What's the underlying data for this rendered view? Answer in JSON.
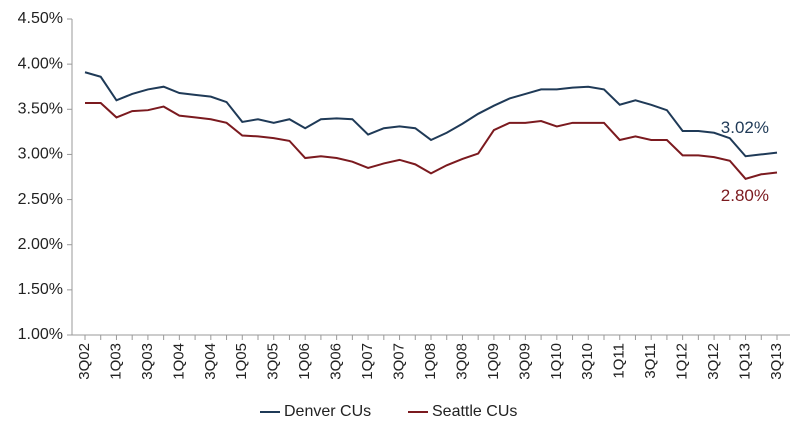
{
  "chart_data": {
    "type": "line",
    "categories": [
      "3Q02",
      null,
      "1Q03",
      null,
      "3Q03",
      null,
      "1Q04",
      null,
      "3Q04",
      null,
      "1Q05",
      null,
      "3Q05",
      null,
      "1Q06",
      null,
      "3Q06",
      null,
      "1Q07",
      null,
      "3Q07",
      null,
      "1Q08",
      null,
      "3Q08",
      null,
      "1Q09",
      null,
      "3Q09",
      null,
      "1Q10",
      null,
      "3Q10",
      null,
      "1Q11",
      null,
      "3Q11",
      null,
      "1Q12",
      null,
      "3Q12",
      null,
      "1Q13",
      null,
      "3Q13"
    ],
    "series": [
      {
        "name": "Denver CUs",
        "color": "#1f3a57",
        "end_label": "3.02%",
        "values": [
          3.91,
          3.86,
          3.6,
          3.67,
          3.72,
          3.75,
          3.68,
          3.66,
          3.64,
          3.58,
          3.36,
          3.39,
          3.35,
          3.39,
          3.29,
          3.39,
          3.4,
          3.39,
          3.22,
          3.29,
          3.31,
          3.29,
          3.16,
          3.24,
          3.34,
          3.45,
          3.54,
          3.62,
          3.67,
          3.72,
          3.72,
          3.74,
          3.75,
          3.72,
          3.55,
          3.6,
          3.55,
          3.49,
          3.26,
          3.26,
          3.24,
          3.18,
          2.98,
          3.0,
          3.02
        ]
      },
      {
        "name": "Seattle CUs",
        "color": "#7b1a1f",
        "end_label": "2.80%",
        "values": [
          3.57,
          3.57,
          3.41,
          3.48,
          3.49,
          3.53,
          3.43,
          3.41,
          3.39,
          3.35,
          3.21,
          3.2,
          3.18,
          3.15,
          2.96,
          2.98,
          2.96,
          2.92,
          2.85,
          2.9,
          2.94,
          2.89,
          2.79,
          2.88,
          2.95,
          3.01,
          3.27,
          3.35,
          3.35,
          3.37,
          3.31,
          3.35,
          3.35,
          3.35,
          3.16,
          3.2,
          3.16,
          3.16,
          2.99,
          2.99,
          2.97,
          2.93,
          2.73,
          2.78,
          2.8
        ]
      }
    ],
    "ylim": [
      1,
      4.5
    ],
    "yticks": [
      {
        "value": 1,
        "label": "1.00%"
      },
      {
        "value": 1.5,
        "label": "1.50%"
      },
      {
        "value": 2,
        "label": "2.00%"
      },
      {
        "value": 2.5,
        "label": "2.50%"
      },
      {
        "value": 3,
        "label": "3.00%"
      },
      {
        "value": 3.5,
        "label": "3.50%"
      },
      {
        "value": 4,
        "label": "4.00%"
      },
      {
        "value": 4.5,
        "label": "4.50%"
      }
    ],
    "grid": false,
    "legend": "bottom"
  }
}
